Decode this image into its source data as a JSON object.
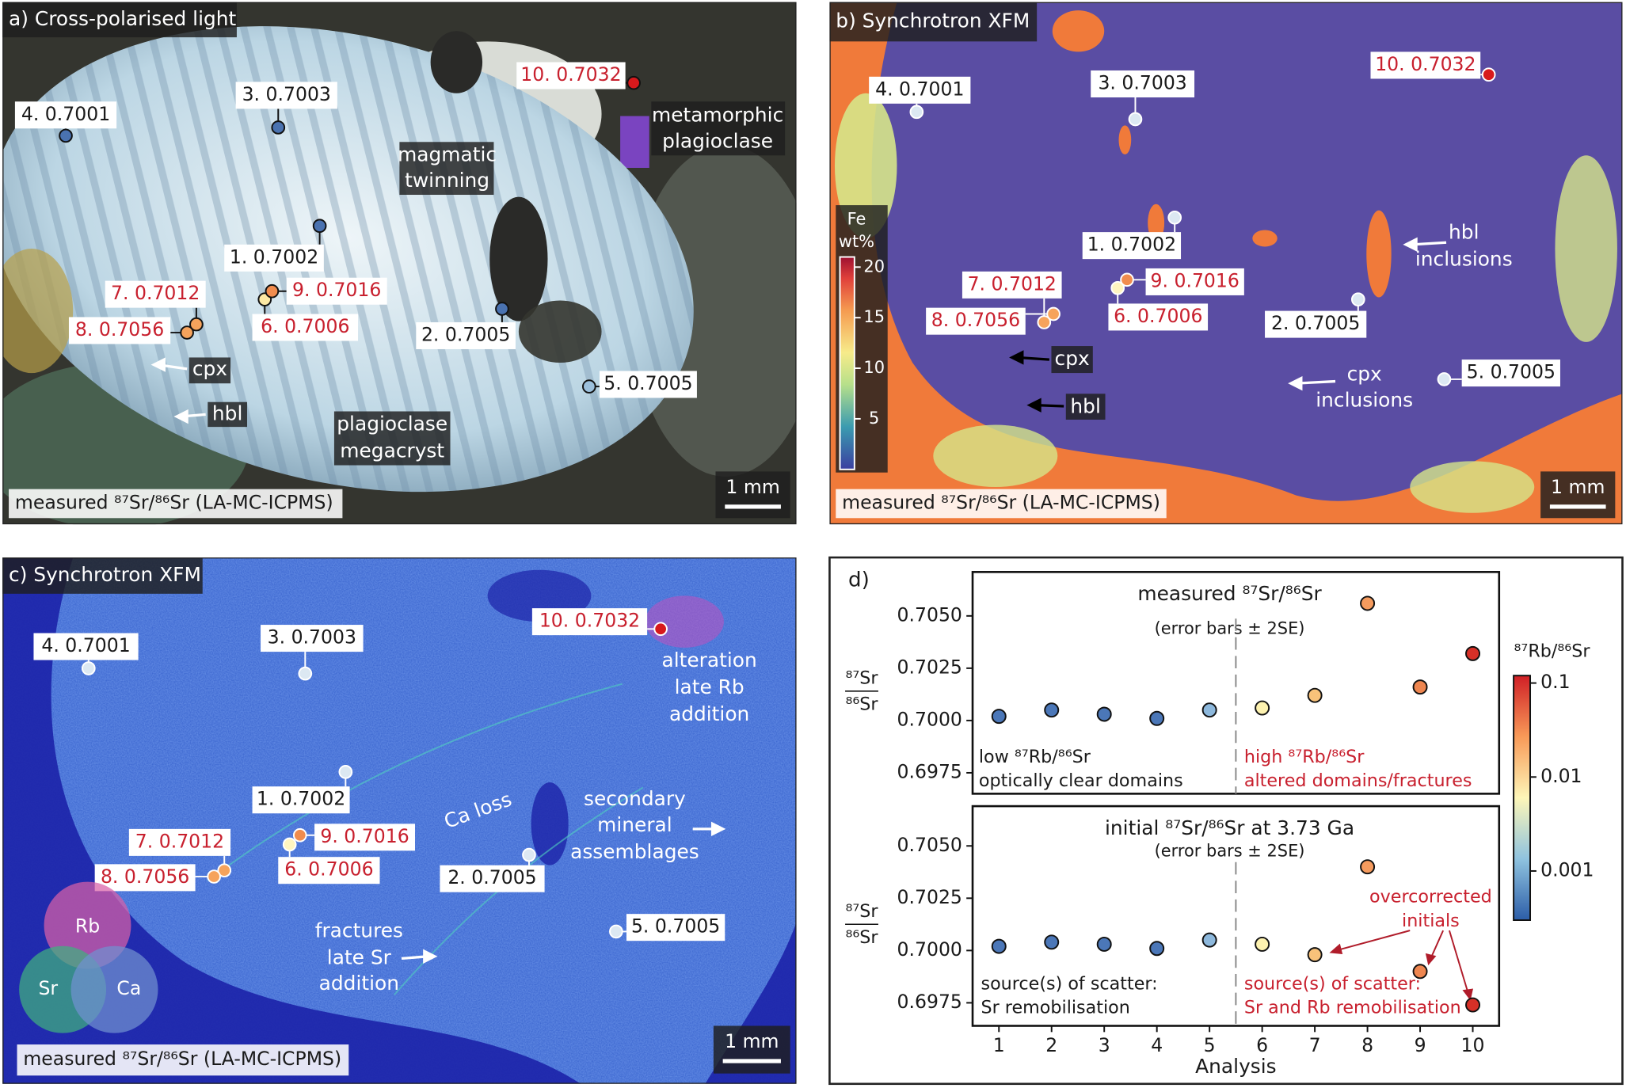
{
  "panels": [
    {
      "title": "a) Cross-polarised light",
      "points": [
        {
          "label": "1. 0.7002",
          "color": "#4a72b0",
          "text_color": "#1a1a1a"
        },
        {
          "label": "2. 0.7005",
          "color": "#4a72b0",
          "text_color": "#1a1a1a"
        },
        {
          "label": "3. 0.7003",
          "color": "#4a72b0",
          "text_color": "#1a1a1a"
        },
        {
          "label": "4. 0.7001",
          "color": "#4a72b0",
          "text_color": "#1a1a1a"
        },
        {
          "label": "5. 0.7005",
          "color": "#9cc0dc",
          "text_color": "#1a1a1a"
        },
        {
          "label": "6. 0.7006",
          "color": "#fde9a4",
          "text_color": "#c8202e"
        },
        {
          "label": "7. 0.7012",
          "color": "#f6a35c",
          "text_color": "#c8202e"
        },
        {
          "label": "8. 0.7056",
          "color": "#f6a35c",
          "text_color": "#c8202e"
        },
        {
          "label": "9. 0.7016",
          "color": "#f08c4e",
          "text_color": "#c8202e"
        },
        {
          "label": "10. 0.7032",
          "color": "#d7191c",
          "text_color": "#c8202e"
        }
      ],
      "annotations": [
        [
          "metamorphic",
          "plagioclase"
        ],
        [
          "magmatic",
          "twinning"
        ],
        [
          "cpx"
        ],
        [
          "hbl"
        ],
        [
          "plagioclase",
          "megacryst"
        ]
      ],
      "note": "measured ⁸⁷Sr/⁸⁶Sr (LA-MC-ICPMS)",
      "scale": "1 mm"
    },
    {
      "title": "b) Synchrotron XFM",
      "points": [
        {
          "label": "1. 0.7002",
          "color": "#dce8f2",
          "text_color": "#1a1a1a"
        },
        {
          "label": "2. 0.7005",
          "color": "#dce8f2",
          "text_color": "#1a1a1a"
        },
        {
          "label": "3. 0.7003",
          "color": "#dce8f2",
          "text_color": "#1a1a1a"
        },
        {
          "label": "4. 0.7001",
          "color": "#dce8f2",
          "text_color": "#1a1a1a"
        },
        {
          "label": "5. 0.7005",
          "color": "#dce8f2",
          "text_color": "#1a1a1a"
        },
        {
          "label": "6. 0.7006",
          "color": "#fff5c0",
          "text_color": "#c8202e"
        },
        {
          "label": "7. 0.7012",
          "color": "#f6a35c",
          "text_color": "#c8202e"
        },
        {
          "label": "8. 0.7056",
          "color": "#f6a35c",
          "text_color": "#c8202e"
        },
        {
          "label": "9. 0.7016",
          "color": "#f08c4e",
          "text_color": "#c8202e"
        },
        {
          "label": "10. 0.7032",
          "color": "#d7191c",
          "text_color": "#c8202e"
        }
      ],
      "annotations": [
        [
          "hbl",
          "inclusions"
        ],
        [
          "cpx",
          "inclusions"
        ],
        [
          "cpx"
        ],
        [
          "hbl"
        ]
      ],
      "colorbar": {
        "label": [
          "Fe",
          "wt%"
        ],
        "lim": [
          0,
          21
        ],
        "ticks": [
          5,
          10,
          15,
          20
        ]
      },
      "note": "measured ⁸⁷Sr/⁸⁶Sr (LA-MC-ICPMS)",
      "scale": "1 mm"
    },
    {
      "title": "c) Synchrotron XFM",
      "points": [
        {
          "label": "1. 0.7002",
          "color": "#dce8f2",
          "text_color": "#1a1a1a"
        },
        {
          "label": "2. 0.7005",
          "color": "#dce8f2",
          "text_color": "#1a1a1a"
        },
        {
          "label": "3. 0.7003",
          "color": "#dce8f2",
          "text_color": "#1a1a1a"
        },
        {
          "label": "4. 0.7001",
          "color": "#dce8f2",
          "text_color": "#1a1a1a"
        },
        {
          "label": "5. 0.7005",
          "color": "#dce8f2",
          "text_color": "#1a1a1a"
        },
        {
          "label": "6. 0.7006",
          "color": "#fff5c0",
          "text_color": "#c8202e"
        },
        {
          "label": "7. 0.7012",
          "color": "#f6a35c",
          "text_color": "#c8202e"
        },
        {
          "label": "8. 0.7056",
          "color": "#f6a35c",
          "text_color": "#c8202e"
        },
        {
          "label": "9. 0.7016",
          "color": "#f08c4e",
          "text_color": "#c8202e"
        },
        {
          "label": "10. 0.7032",
          "color": "#d7191c",
          "text_color": "#c8202e"
        }
      ],
      "annotations": [
        [
          "alteration",
          "late Rb",
          "addition"
        ],
        [
          "secondary",
          "mineral",
          "assemblages"
        ],
        [
          "Ca loss"
        ],
        [
          "fractures",
          "late Sr",
          "addition"
        ]
      ],
      "venn": [
        "Rb",
        "Sr",
        "Ca"
      ],
      "note": "measured ⁸⁷Sr/⁸⁶Sr (LA-MC-ICPMS)",
      "scale": "1 mm"
    }
  ],
  "panel_d": {
    "label": "d)",
    "colorbar": {
      "label": "⁸⁷Rb/⁸⁶Sr",
      "scale": "log",
      "lim": [
        0.0003,
        0.12
      ],
      "ticks": [
        0.1,
        0.01,
        0.001
      ]
    }
  },
  "chart_data": [
    {
      "type": "scatter",
      "title": "measured ⁸⁷Sr/⁸⁶Sr",
      "subtitle": "(error bars ± 2SE)",
      "ylabel": {
        "numerator": "⁸⁷Sr",
        "denominator": "⁸⁶Sr"
      },
      "x": [
        1,
        2,
        3,
        4,
        5,
        6,
        7,
        8,
        9,
        10
      ],
      "values": [
        0.7002,
        0.7005,
        0.7003,
        0.7001,
        0.7005,
        0.7006,
        0.7012,
        0.7056,
        0.7016,
        0.7032
      ],
      "colors": [
        "#4b77b8",
        "#4b77b8",
        "#4b77b8",
        "#4b77b8",
        "#8db8dc",
        "#fdf2b0",
        "#f9c27a",
        "#f59b5e",
        "#ee8650",
        "#d73027"
      ],
      "xlim": [
        0.5,
        10.5
      ],
      "ylim": [
        0.6965,
        0.7071
      ],
      "yticks": [
        {
          "value": 0.705,
          "label": "0.7050"
        },
        0.7025,
        {
          "value": 0.7,
          "label": "0.7000"
        },
        0.6975
      ],
      "annotations": [
        "low ⁸⁷Rb/⁸⁶Sr",
        "optically clear domains",
        "high ⁸⁷Rb/⁸⁶Sr",
        "altered domains/fractures"
      ]
    },
    {
      "type": "scatter",
      "title": "initial ⁸⁷Sr/⁸⁶Sr at 3.73 Ga",
      "subtitle": "(error bars ± 2SE)",
      "ylabel": {
        "numerator": "⁸⁷Sr",
        "denominator": "⁸⁶Sr"
      },
      "xlabel": "Analysis",
      "x": [
        1,
        2,
        3,
        4,
        5,
        6,
        7,
        8,
        9,
        10
      ],
      "values": [
        0.7002,
        0.7004,
        0.7003,
        0.7001,
        0.7005,
        0.7003,
        0.6998,
        0.704,
        0.699,
        0.6974
      ],
      "colors": [
        "#4b77b8",
        "#4b77b8",
        "#4b77b8",
        "#4b77b8",
        "#8db8dc",
        "#fdf2b0",
        "#f9c27a",
        "#f59b5e",
        "#ee8650",
        "#d73027"
      ],
      "xlim": [
        0.5,
        10.5
      ],
      "ylim": [
        0.6964,
        0.7069
      ],
      "xticks": [
        1,
        2,
        3,
        4,
        5,
        6,
        7,
        8,
        9,
        10
      ],
      "yticks": [
        {
          "value": 0.705,
          "label": "0.7050"
        },
        0.7025,
        {
          "value": 0.7,
          "label": "0.7000"
        },
        0.6975
      ],
      "annotations": [
        "source(s) of scatter:",
        "Sr remobilisation",
        "source(s) of scatter:",
        "Sr and Rb remobilisation",
        "overcorrected",
        "initials"
      ]
    }
  ]
}
